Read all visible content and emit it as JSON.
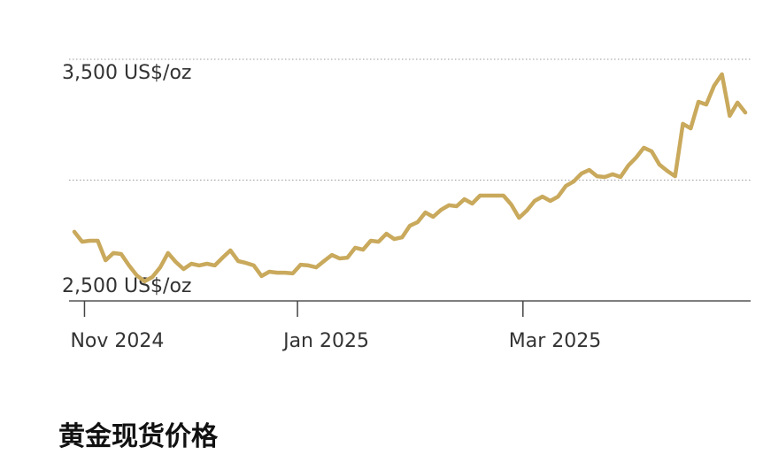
{
  "chart_data": {
    "type": "line",
    "title": "黄金现货价格",
    "series": [
      {
        "color": "#c9a95c",
        "values": [
          2786,
          2745,
          2749,
          2749,
          2668,
          2698,
          2694,
          2647,
          2606,
          2581,
          2599,
          2639,
          2698,
          2661,
          2632,
          2654,
          2647,
          2654,
          2647,
          2679,
          2709,
          2665,
          2657,
          2647,
          2603,
          2621,
          2617,
          2617,
          2614,
          2650,
          2647,
          2639,
          2665,
          2690,
          2676,
          2679,
          2720,
          2712,
          2749,
          2745,
          2778,
          2756,
          2763,
          2811,
          2826,
          2866,
          2848,
          2877,
          2896,
          2892,
          2921,
          2903,
          2936,
          2936,
          2936,
          2936,
          2899,
          2844,
          2874,
          2914,
          2932,
          2914,
          2932,
          2976,
          2994,
          3027,
          3042,
          3016,
          3013,
          3024,
          3013,
          3060,
          3093,
          3134,
          3119,
          3064,
          3038,
          3016,
          3233,
          3214,
          3324,
          3313,
          3390,
          3438,
          3266,
          3321,
          3280
        ]
      }
    ],
    "xlim": [
      0,
      86
    ],
    "xticks": [
      {
        "value": 1.3,
        "label": "Nov 2024"
      },
      {
        "value": 28.6,
        "label": "Jan 2025"
      },
      {
        "value": 57.5,
        "label": "Mar 2025"
      }
    ],
    "ylim": [
      2500,
      3500
    ],
    "yticks": [
      {
        "value": 2500,
        "label": "2,500 US$/oz"
      },
      {
        "value": 3000,
        "label": null
      },
      {
        "value": 3500,
        "label": "3,500 US$/oz"
      }
    ],
    "grid": true
  }
}
